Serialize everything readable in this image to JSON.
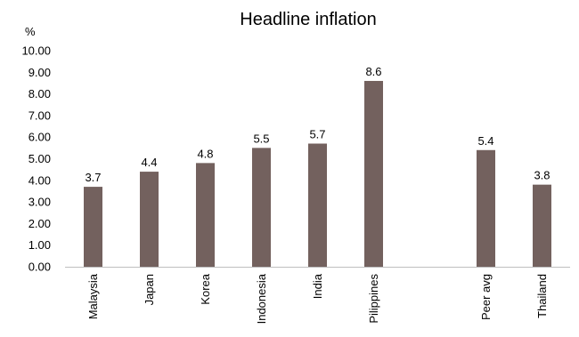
{
  "chart_data": {
    "type": "bar",
    "title": "Headline inflation",
    "ylabel": "%",
    "xlabel": "",
    "ylim": [
      0,
      10
    ],
    "ytick_step": 1,
    "ytick_labels": [
      "0.00",
      "1.00",
      "2.00",
      "3.00",
      "4.00",
      "5.00",
      "6.00",
      "7.00",
      "8.00",
      "9.00",
      "10.00"
    ],
    "categories": [
      "Malaysia",
      "Japan",
      "Korea",
      "Indonesia",
      "India",
      "Pilippines",
      "",
      "Peer avg",
      "Thailand"
    ],
    "values": [
      3.7,
      4.4,
      4.8,
      5.5,
      5.7,
      8.6,
      null,
      5.4,
      3.8
    ],
    "data_labels": [
      "3.7",
      "4.4",
      "4.8",
      "5.5",
      "5.7",
      "8.6",
      "",
      "5.4",
      "3.8"
    ],
    "grid": false,
    "colors": {
      "bar": "#73615e",
      "axis": "#bfbfbf",
      "text": "#000000"
    }
  }
}
